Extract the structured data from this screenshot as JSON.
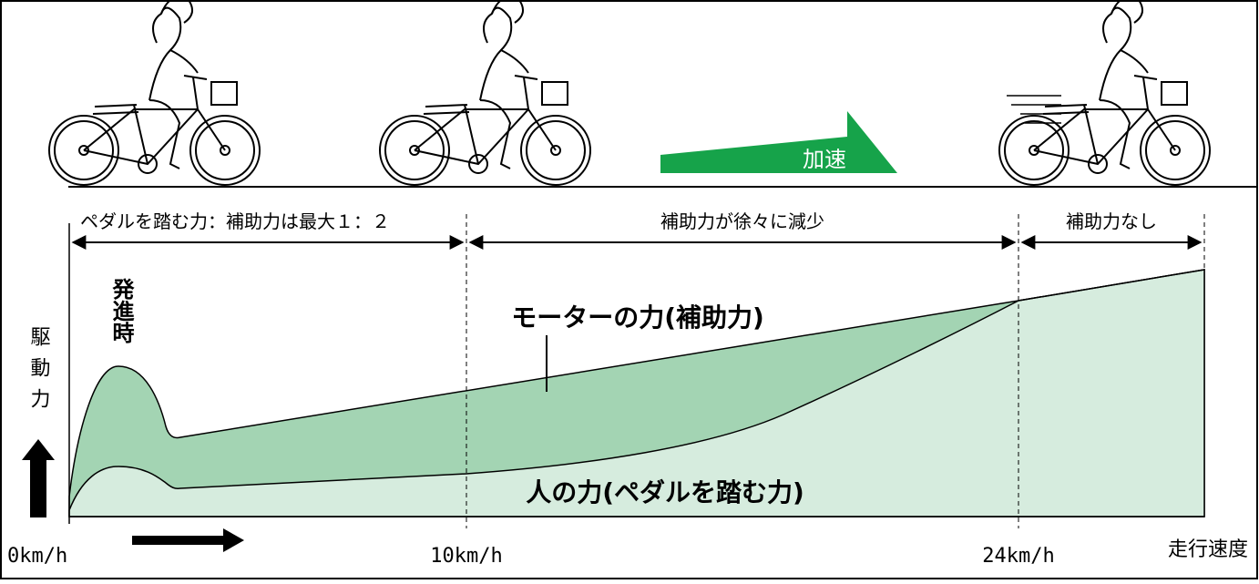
{
  "diagram": {
    "phases": [
      "ペダルを踏む力：補助力は最大１：２",
      "補助力が徐々に減少",
      "補助力なし"
    ],
    "accel_label": "加速",
    "motor_label": "モーターの力(補助力)",
    "human_label": "人の力(ペダルを踏む力)",
    "start_label": "発進時",
    "y_axis_label": "駆動力",
    "x_axis_label": "走行速度",
    "speed_marks": [
      "0km/h",
      "10km/h",
      "24km/h"
    ]
  }
}
